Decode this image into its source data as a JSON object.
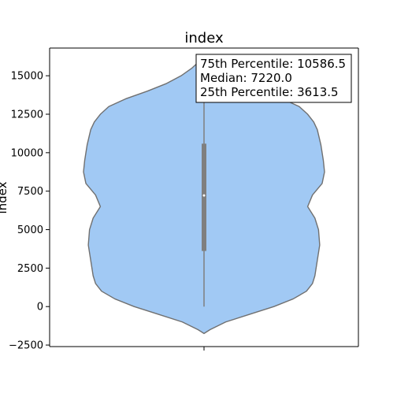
{
  "chart_data": {
    "type": "violin",
    "title": "index",
    "xlabel": "",
    "ylabel": "index",
    "ylim": [
      -2600,
      16800
    ],
    "yticks": [
      -2500,
      0,
      2500,
      5000,
      7500,
      10000,
      12500,
      15000
    ],
    "ytick_labels": [
      "−2500",
      "0",
      "2500",
      "5000",
      "7500",
      "10000",
      "12500",
      "15000"
    ],
    "grid": false,
    "legend_placement": "top-right",
    "annotation_lines": [
      "75th Percentile: 10586.5",
      "Median: 7220.0",
      "25th Percentile: 3613.5"
    ],
    "series": [
      {
        "data_min": 0,
        "data_max": 14440,
        "q1": 3613.5,
        "median": 7220.0,
        "q3": 10586.5,
        "density_range": [
          -1750,
          16200
        ],
        "density_profile": [
          [
            -1750,
            0.0
          ],
          [
            -1500,
            0.05
          ],
          [
            -1000,
            0.18
          ],
          [
            -500,
            0.38
          ],
          [
            0,
            0.58
          ],
          [
            500,
            0.74
          ],
          [
            1000,
            0.85
          ],
          [
            1500,
            0.9
          ],
          [
            2000,
            0.92
          ],
          [
            3000,
            0.94
          ],
          [
            4000,
            0.96
          ],
          [
            5000,
            0.95
          ],
          [
            5750,
            0.92
          ],
          [
            6500,
            0.86
          ],
          [
            7250,
            0.9
          ],
          [
            8000,
            0.98
          ],
          [
            8750,
            1.0
          ],
          [
            9500,
            0.99
          ],
          [
            10500,
            0.97
          ],
          [
            11500,
            0.94
          ],
          [
            12000,
            0.91
          ],
          [
            12500,
            0.86
          ],
          [
            13000,
            0.79
          ],
          [
            13500,
            0.65
          ],
          [
            14000,
            0.47
          ],
          [
            14500,
            0.31
          ],
          [
            15000,
            0.19
          ],
          [
            15500,
            0.1
          ],
          [
            16000,
            0.03
          ],
          [
            16200,
            0.0
          ]
        ],
        "fill_color": "#a1c9f4",
        "edge_color": "#707070",
        "box_color": "#7f7f7f",
        "median_color": "#ffffff"
      }
    ]
  }
}
